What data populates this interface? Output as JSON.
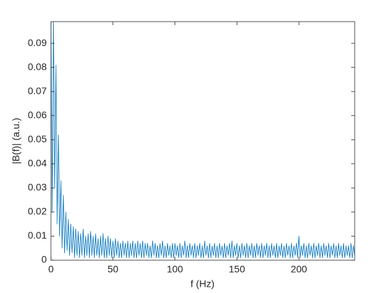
{
  "chart_data": {
    "type": "line",
    "xlabel": "f (Hz)",
    "ylabel": "|B(f)|  (a.u.)",
    "color": "#0072bd",
    "xlim": [
      0,
      245
    ],
    "xticks": [
      0,
      50,
      100,
      150,
      200
    ],
    "ylim": [
      0,
      0.099
    ],
    "yticks": [
      0,
      0.01,
      0.02,
      0.03,
      0.04,
      0.05,
      0.06,
      0.07,
      0.08,
      0.09
    ],
    "x": [
      0,
      1,
      2,
      3,
      4,
      5,
      6,
      7,
      8,
      9,
      10,
      11,
      12,
      13,
      14,
      15,
      16,
      17,
      18,
      19,
      20,
      21,
      22,
      23,
      24,
      25,
      26,
      27,
      28,
      29,
      30,
      31,
      32,
      33,
      34,
      35,
      36,
      37,
      38,
      39,
      40,
      41,
      42,
      43,
      44,
      45,
      46,
      47,
      48,
      49,
      50,
      51,
      52,
      53,
      54,
      55,
      56,
      57,
      58,
      59,
      60,
      61,
      62,
      63,
      64,
      65,
      66,
      67,
      68,
      69,
      70,
      71,
      72,
      73,
      74,
      75,
      76,
      77,
      78,
      79,
      80,
      81,
      82,
      83,
      84,
      85,
      86,
      87,
      88,
      89,
      90,
      91,
      92,
      93,
      94,
      95,
      96,
      97,
      98,
      99,
      100,
      101,
      102,
      103,
      104,
      105,
      106,
      107,
      108,
      109,
      110,
      111,
      112,
      113,
      114,
      115,
      116,
      117,
      118,
      119,
      120,
      121,
      122,
      123,
      124,
      125,
      126,
      127,
      128,
      129,
      130,
      131,
      132,
      133,
      134,
      135,
      136,
      137,
      138,
      139,
      140,
      141,
      142,
      143,
      144,
      145,
      146,
      147,
      148,
      149,
      150,
      151,
      152,
      153,
      154,
      155,
      156,
      157,
      158,
      159,
      160,
      161,
      162,
      163,
      164,
      165,
      166,
      167,
      168,
      169,
      170,
      171,
      172,
      173,
      174,
      175,
      176,
      177,
      178,
      179,
      180,
      181,
      182,
      183,
      184,
      185,
      186,
      187,
      188,
      189,
      190,
      191,
      192,
      193,
      194,
      195,
      196,
      197,
      198,
      199,
      200,
      201,
      202,
      203,
      204,
      205,
      206,
      207,
      208,
      209,
      210,
      211,
      212,
      213,
      214,
      215,
      216,
      217,
      218,
      219,
      220,
      221,
      222,
      223,
      224,
      225,
      226,
      227,
      228,
      229,
      230,
      231,
      232,
      233,
      234,
      235,
      236,
      237,
      238,
      239,
      240,
      241,
      242,
      243,
      244,
      245
    ],
    "values": [
      0.098,
      0.02,
      0.099,
      0.03,
      0.081,
      0.015,
      0.052,
      0.01,
      0.033,
      0.005,
      0.027,
      0.003,
      0.02,
      0.004,
      0.017,
      0.002,
      0.015,
      0.003,
      0.014,
      0.001,
      0.013,
      0.002,
      0.012,
      0.001,
      0.011,
      0.002,
      0.013,
      0.001,
      0.01,
      0.002,
      0.011,
      0.001,
      0.012,
      0.002,
      0.01,
      0.001,
      0.011,
      0.002,
      0.009,
      0.001,
      0.01,
      0.002,
      0.011,
      0.001,
      0.009,
      0.001,
      0.01,
      0.002,
      0.009,
      0.001,
      0.008,
      0.001,
      0.009,
      0.002,
      0.008,
      0.001,
      0.007,
      0.001,
      0.008,
      0.002,
      0.007,
      0.001,
      0.008,
      0.001,
      0.007,
      0.002,
      0.008,
      0.001,
      0.007,
      0.001,
      0.008,
      0.002,
      0.007,
      0.001,
      0.008,
      0.001,
      0.007,
      0.002,
      0.007,
      0.001,
      0.006,
      0.001,
      0.008,
      0.002,
      0.007,
      0.001,
      0.006,
      0.001,
      0.007,
      0.002,
      0.008,
      0.001,
      0.006,
      0.001,
      0.007,
      0.002,
      0.006,
      0.001,
      0.007,
      0.001,
      0.007,
      0.002,
      0.006,
      0.001,
      0.007,
      0.001,
      0.006,
      0.002,
      0.008,
      0.001,
      0.006,
      0.001,
      0.007,
      0.002,
      0.006,
      0.001,
      0.007,
      0.001,
      0.006,
      0.002,
      0.007,
      0.001,
      0.006,
      0.001,
      0.008,
      0.002,
      0.006,
      0.001,
      0.007,
      0.001,
      0.006,
      0.002,
      0.007,
      0.001,
      0.006,
      0.001,
      0.007,
      0.002,
      0.006,
      0.001,
      0.007,
      0.001,
      0.006,
      0.002,
      0.007,
      0.001,
      0.008,
      0.001,
      0.006,
      0.002,
      0.007,
      0.001,
      0.006,
      0.001,
      0.007,
      0.002,
      0.006,
      0.001,
      0.007,
      0.001,
      0.006,
      0.002,
      0.007,
      0.001,
      0.006,
      0.001,
      0.007,
      0.002,
      0.006,
      0.001,
      0.007,
      0.001,
      0.006,
      0.002,
      0.007,
      0.001,
      0.006,
      0.001,
      0.007,
      0.002,
      0.006,
      0.001,
      0.007,
      0.001,
      0.006,
      0.002,
      0.007,
      0.001,
      0.006,
      0.001,
      0.007,
      0.002,
      0.006,
      0.001,
      0.007,
      0.001,
      0.006,
      0.002,
      0.007,
      0.001,
      0.01,
      0.001,
      0.006,
      0.002,
      0.007,
      0.001,
      0.006,
      0.001,
      0.007,
      0.002,
      0.006,
      0.001,
      0.007,
      0.001,
      0.006,
      0.002,
      0.007,
      0.001,
      0.006,
      0.001,
      0.007,
      0.002,
      0.006,
      0.001,
      0.007,
      0.001,
      0.006,
      0.002,
      0.007,
      0.001,
      0.006,
      0.001,
      0.007,
      0.002,
      0.006,
      0.001,
      0.007,
      0.001,
      0.006,
      0.002,
      0.006,
      0.001,
      0.007,
      0.001,
      0.006,
      0.002
    ]
  }
}
